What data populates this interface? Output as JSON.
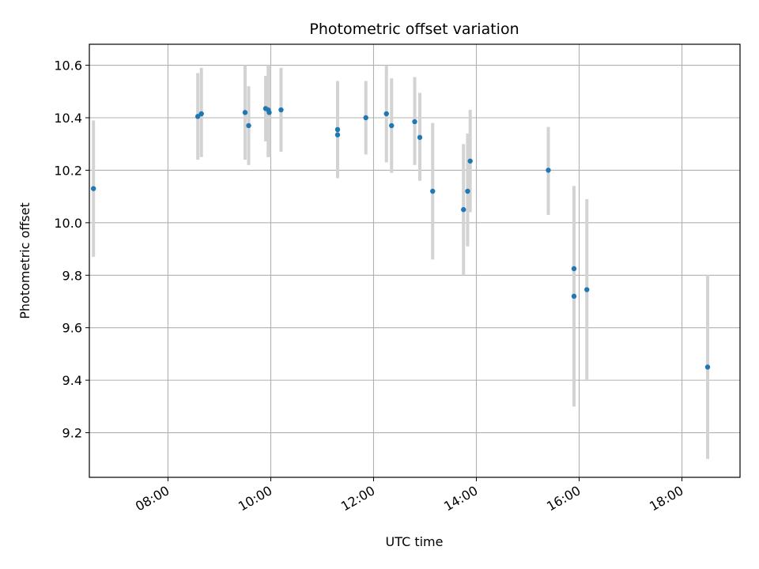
{
  "chart_data": {
    "type": "scatter",
    "title": "Photometric offset variation",
    "xlabel": "UTC time",
    "ylabel": "Photometric offset",
    "x_tick_labels": [
      "08:00",
      "10:00",
      "12:00",
      "14:00",
      "16:00",
      "18:00"
    ],
    "x_tick_hours": [
      8,
      10,
      12,
      14,
      16,
      18
    ],
    "y_ticks": [
      9.2,
      9.4,
      9.6,
      9.8,
      10.0,
      10.2,
      10.4,
      10.6
    ],
    "xlim_hours": [
      6.47,
      19.13
    ],
    "ylim": [
      9.03,
      10.68
    ],
    "grid": true,
    "colors": {
      "points": "#1f77b4",
      "errorbars": "#d3d3d3",
      "grid": "#b0b0b0"
    },
    "series": [
      {
        "x_hours": [
          6.55,
          8.58,
          8.65,
          9.5,
          9.57,
          9.9,
          9.95,
          9.97,
          10.2,
          11.3,
          11.3,
          11.85,
          12.25,
          12.35,
          12.8,
          12.9,
          13.15,
          13.75,
          13.83,
          13.88,
          15.4,
          15.9,
          15.9,
          16.15,
          18.5
        ],
        "y": [
          10.13,
          10.405,
          10.415,
          10.42,
          10.37,
          10.435,
          10.43,
          10.42,
          10.43,
          10.355,
          10.335,
          10.4,
          10.415,
          10.37,
          10.385,
          10.325,
          10.12,
          10.05,
          10.12,
          10.235,
          10.2,
          9.825,
          9.72,
          9.745,
          9.45
        ],
        "err_low": [
          9.87,
          10.24,
          10.25,
          10.24,
          10.22,
          10.31,
          10.25,
          10.25,
          10.27,
          10.17,
          10.17,
          10.26,
          10.23,
          10.19,
          10.22,
          10.16,
          9.86,
          9.8,
          9.91,
          10.04,
          10.03,
          9.56,
          9.3,
          9.4,
          9.1
        ],
        "err_high": [
          10.39,
          10.57,
          10.59,
          10.6,
          10.52,
          10.56,
          10.6,
          10.6,
          10.59,
          10.54,
          10.54,
          10.54,
          10.6,
          10.55,
          10.555,
          10.495,
          10.38,
          10.3,
          10.34,
          10.43,
          10.365,
          10.09,
          10.14,
          10.09,
          9.8
        ]
      }
    ]
  }
}
